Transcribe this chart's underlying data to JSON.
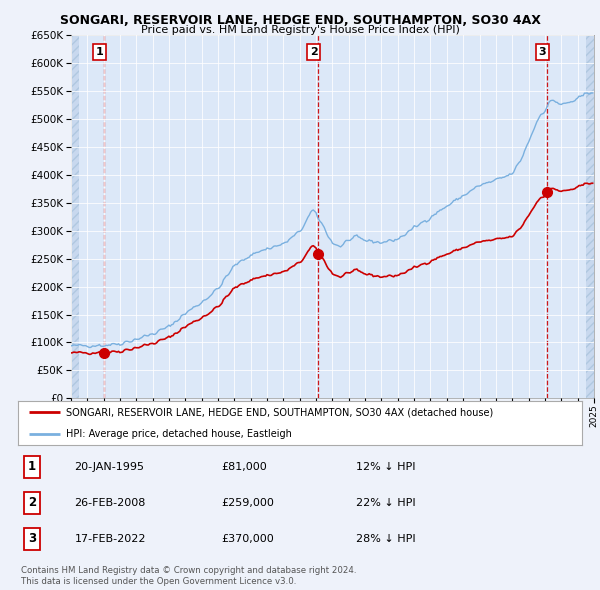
{
  "title": "SONGARI, RESERVOIR LANE, HEDGE END, SOUTHAMPTON, SO30 4AX",
  "subtitle": "Price paid vs. HM Land Registry's House Price Index (HPI)",
  "background_color": "#eef2fa",
  "plot_bg_color": "#dce8f8",
  "hatch_color": "#c8d8ee",
  "hpi_color": "#7ab0df",
  "price_color": "#cc0000",
  "vline_color": "#cc0000",
  "ylim": [
    0,
    650000
  ],
  "yticks": [
    0,
    50000,
    100000,
    150000,
    200000,
    250000,
    300000,
    350000,
    400000,
    450000,
    500000,
    550000,
    600000,
    650000
  ],
  "sale_years": [
    1995.055,
    2008.147,
    2022.13
  ],
  "sale_prices": [
    81000,
    259000,
    370000
  ],
  "sale_labels": [
    "1",
    "2",
    "3"
  ],
  "sale_info": [
    {
      "label": "1",
      "date": "20-JAN-1995",
      "price": "£81,000",
      "pct": "12% ↓ HPI"
    },
    {
      "label": "2",
      "date": "26-FEB-2008",
      "price": "£259,000",
      "pct": "22% ↓ HPI"
    },
    {
      "label": "3",
      "date": "17-FEB-2022",
      "price": "£370,000",
      "pct": "28% ↓ HPI"
    }
  ],
  "legend_entry1": "SONGARI, RESERVOIR LANE, HEDGE END, SOUTHAMPTON, SO30 4AX (detached house)",
  "legend_entry2": "HPI: Average price, detached house, Eastleigh",
  "footer1": "Contains HM Land Registry data © Crown copyright and database right 2024.",
  "footer2": "This data is licensed under the Open Government Licence v3.0."
}
